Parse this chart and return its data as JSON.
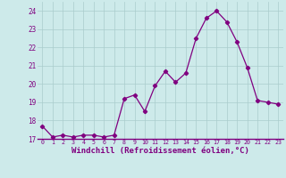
{
  "x": [
    0,
    1,
    2,
    3,
    4,
    5,
    6,
    7,
    8,
    9,
    10,
    11,
    12,
    13,
    14,
    15,
    16,
    17,
    18,
    19,
    20,
    21,
    22,
    23
  ],
  "y": [
    17.7,
    17.1,
    17.2,
    17.1,
    17.2,
    17.2,
    17.1,
    17.2,
    19.2,
    19.4,
    18.5,
    19.9,
    20.7,
    20.1,
    20.6,
    22.5,
    23.6,
    24.0,
    23.4,
    22.3,
    20.9,
    19.1,
    19.0,
    18.9
  ],
  "line_color": "#800080",
  "marker": "D",
  "markersize": 2.2,
  "linewidth": 0.9,
  "xlabel": "Windchill (Refroidissement éolien,°C)",
  "xlabel_fontsize": 6.5,
  "ylim": [
    17,
    24.5
  ],
  "yticks": [
    17,
    18,
    19,
    20,
    21,
    22,
    23,
    24
  ],
  "xticks": [
    0,
    1,
    2,
    3,
    4,
    5,
    6,
    7,
    8,
    9,
    10,
    11,
    12,
    13,
    14,
    15,
    16,
    17,
    18,
    19,
    20,
    21,
    22,
    23
  ],
  "bg_color": "#cdeaea",
  "grid_color": "#aacccc",
  "tick_color": "#800080",
  "axis_label_color": "#800080"
}
